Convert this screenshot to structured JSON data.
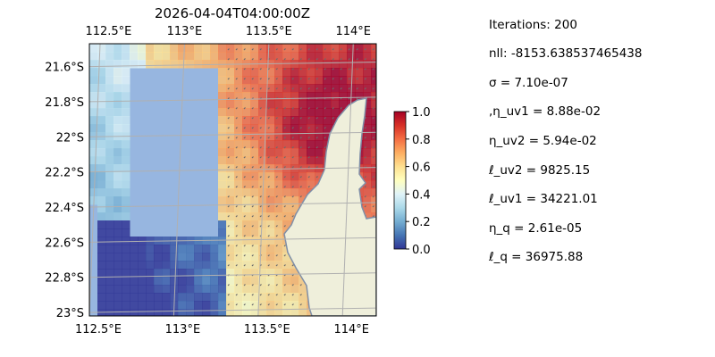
{
  "chart_data": [
    {
      "type": "heatmap",
      "title": "2026-04-04T04:00:00Z",
      "xlabel": "",
      "ylabel": "",
      "xlim": [
        112.5,
        114.2
      ],
      "ylim": [
        -23.02,
        -21.47
      ],
      "top_x_ticks": [
        {
          "value": 112.55,
          "label": "112.5°E"
        },
        {
          "value": 113.0,
          "label": "113°E"
        },
        {
          "value": 113.5,
          "label": "113.5°E"
        },
        {
          "value": 114.0,
          "label": "114°E"
        }
      ],
      "bottom_x_ticks": [
        {
          "value": 112.5,
          "label": "112.5°E"
        },
        {
          "value": 113.0,
          "label": "113°E"
        },
        {
          "value": 113.5,
          "label": "113.5°E"
        },
        {
          "value": 114.0,
          "label": "114°E"
        }
      ],
      "y_ticks": [
        {
          "value": -21.6,
          "label": "21.6°S"
        },
        {
          "value": -21.8,
          "label": "21.8°S"
        },
        {
          "value": -22.0,
          "label": "22°S"
        },
        {
          "value": -22.2,
          "label": "22.2°S"
        },
        {
          "value": -22.4,
          "label": "22.4°S"
        },
        {
          "value": -22.6,
          "label": "22.6°S"
        },
        {
          "value": -22.8,
          "label": "22.8°S"
        },
        {
          "value": -23.0,
          "label": "23°S"
        }
      ],
      "grid": true,
      "field_description_values": {
        "coast_corridor_high": 0.85,
        "northern_plateau": 0.7,
        "central_mid": 0.45,
        "western_low": 0.12,
        "southern_low": 0.05
      },
      "colors": {
        "ocean_mask": "#97b6e0",
        "land": "#efefdb",
        "coastline": "#7f8fa8",
        "gridline": "#b0b0b0",
        "arrows": "#6b6b6b"
      }
    },
    {
      "type": "heatmap",
      "title": "",
      "colorbar_ticks": [
        {
          "value": 1.0,
          "label": "1.0"
        },
        {
          "value": 0.8,
          "label": "0.8"
        },
        {
          "value": 0.6,
          "label": "0.6"
        },
        {
          "value": 0.4,
          "label": "0.4"
        },
        {
          "value": 0.2,
          "label": "0.2"
        },
        {
          "value": 0.0,
          "label": "0.0"
        }
      ],
      "range": [
        0.0,
        1.0
      ],
      "colormap": "RdYlBu_r"
    }
  ],
  "stats": [
    "Iterations: 200",
    "nll: -8153.638537465438",
    "σ = 7.10e-07",
    ",η_uv1 = 8.88e-02",
    "η_uv2 = 5.94e-02",
    "ℓ_uv1 = 34221.01",
    "ℓ_uv2 = 9825.15",
    "η_q = 2.61e-05",
    "ℓ_q = 36975.88"
  ]
}
